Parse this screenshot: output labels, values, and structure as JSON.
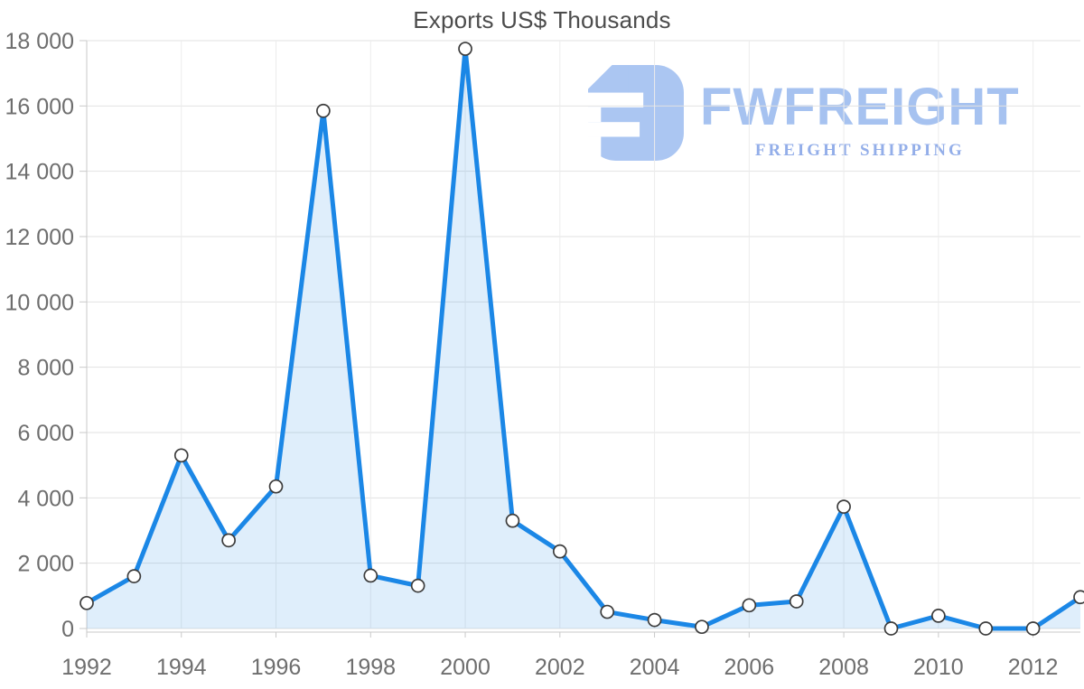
{
  "chart": {
    "title": "Exports US$ Thousands"
  },
  "watermark": {
    "brand": "FWFREIGHT",
    "tagline": "FREIGHT SHIPPING",
    "brand_color": "#a6c2f0",
    "tagline_color": "#93aee9",
    "icon_color": "#abc6f2"
  },
  "chart_data": {
    "type": "area",
    "title": "Exports US$ Thousands",
    "x": [
      1992,
      1993,
      1994,
      1995,
      1996,
      1997,
      1998,
      1999,
      2000,
      2001,
      2002,
      2003,
      2004,
      2005,
      2006,
      2007,
      2008,
      2009,
      2010,
      2011,
      2012,
      2013
    ],
    "series": [
      {
        "name": "Exports US$ Thousands",
        "values": [
          780,
          1600,
          5300,
          2700,
          4350,
          15850,
          1620,
          1310,
          17750,
          3300,
          2360,
          510,
          260,
          50,
          710,
          830,
          3730,
          0,
          390,
          0,
          0,
          960
        ]
      }
    ],
    "ylim": [
      0,
      18000
    ],
    "ytick_step": 2000,
    "ytick_labels": [
      "0",
      "2 000",
      "4 000",
      "6 000",
      "8 000",
      "10 000",
      "12 000",
      "14 000",
      "16 000",
      "18 000"
    ],
    "xtick_indices": [
      0,
      2,
      4,
      6,
      8,
      10,
      12,
      14,
      16,
      18,
      20
    ],
    "xtick_labels": [
      "1992",
      "1994",
      "1996",
      "1998",
      "2000",
      "2002",
      "2004",
      "2006",
      "2008",
      "2010",
      "2012"
    ],
    "grid": true,
    "legend_position": "none",
    "colors": {
      "line": "#1b87e6",
      "fill": "rgba(30,136,229,0.14)",
      "marker_fill": "#ffffff",
      "marker_stroke": "#3c3c3c",
      "grid_h": "#e2e2e2",
      "grid_v": "#ececec",
      "axis": "#c9c9c9",
      "tick_text": "#6e6e6e",
      "title_text": "#4c4c4c"
    }
  }
}
